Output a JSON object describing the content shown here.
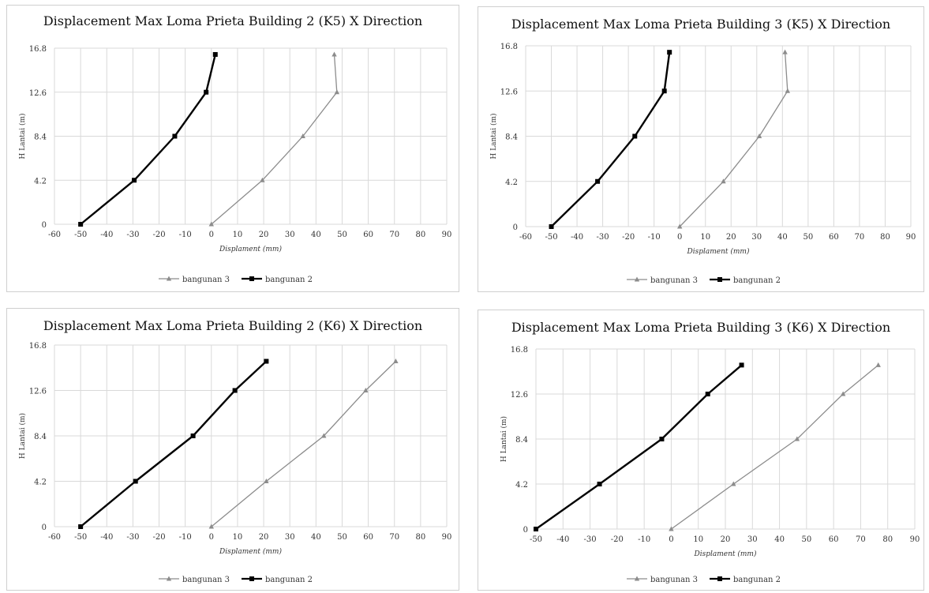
{
  "colors": {
    "series_light": "#8c8c8c",
    "series_dark": "#000000",
    "grid": "#d9d9d9",
    "border": "#cfcfcf"
  },
  "chart_data": [
    {
      "type": "line",
      "title": "Displacement Max Loma Prieta Building 2 (K5) X Direction",
      "xlabel": "Displament (mm)",
      "ylabel": "H Lantai (m)",
      "xlim": [
        -60,
        90
      ],
      "ylim": [
        0,
        16.8
      ],
      "xticks": [
        "-60",
        "-50",
        "-40",
        "-30",
        "-20",
        "-10",
        "0",
        "10",
        "20",
        "30",
        "40",
        "50",
        "60",
        "70",
        "80",
        "90"
      ],
      "yticks": [
        "0",
        "4.2",
        "8.4",
        "12.6",
        "16.8"
      ],
      "grid": true,
      "legend_position": "bottom",
      "series": [
        {
          "name": "bangunan 3",
          "marker": "triangle",
          "points": [
            [
              0,
              0
            ],
            [
              19.5,
              4.2
            ],
            [
              35,
              8.4
            ],
            [
              48,
              12.6
            ],
            [
              47,
              16.2
            ]
          ]
        },
        {
          "name": "bangunan 2",
          "marker": "square",
          "points": [
            [
              -50,
              0
            ],
            [
              -29.5,
              4.2
            ],
            [
              -14,
              8.4
            ],
            [
              -2,
              12.6
            ],
            [
              1.5,
              16.2
            ]
          ]
        }
      ]
    },
    {
      "type": "line",
      "title": "Displacement Max Loma Prieta Building 3 (K5) X Direction",
      "xlabel": "Displament (mm)",
      "ylabel": "H Lantai (m)",
      "xlim": [
        -60,
        90
      ],
      "ylim": [
        0,
        16.8
      ],
      "xticks": [
        "-60",
        "-50",
        "-40",
        "-30",
        "-20",
        "-10",
        "0",
        "10",
        "20",
        "30",
        "40",
        "50",
        "60",
        "70",
        "80",
        "90"
      ],
      "yticks": [
        "0",
        "4.2",
        "8.4",
        "12.6",
        "16.8"
      ],
      "grid": true,
      "legend_position": "bottom",
      "series": [
        {
          "name": "bangunan 3",
          "marker": "triangle",
          "points": [
            [
              0,
              0
            ],
            [
              17,
              4.2
            ],
            [
              31,
              8.4
            ],
            [
              42,
              12.6
            ],
            [
              41,
              16.2
            ]
          ]
        },
        {
          "name": "bangunan 2",
          "marker": "square",
          "points": [
            [
              -50,
              0
            ],
            [
              -32,
              4.2
            ],
            [
              -17.5,
              8.4
            ],
            [
              -6,
              12.6
            ],
            [
              -4,
              16.2
            ]
          ]
        }
      ]
    },
    {
      "type": "line",
      "title": "Displacement Max Loma Prieta Building 2 (K6) X Direction",
      "xlabel": "Displament (mm)",
      "ylabel": "H Lantai (m)",
      "xlim": [
        -60,
        90
      ],
      "ylim": [
        0,
        16.8
      ],
      "xticks": [
        "-60",
        "-50",
        "-40",
        "-30",
        "-20",
        "-10",
        "0",
        "10",
        "20",
        "30",
        "40",
        "50",
        "60",
        "70",
        "80",
        "90"
      ],
      "yticks": [
        "0",
        "4.2",
        "8.4",
        "12.6",
        "16.8"
      ],
      "grid": true,
      "legend_position": "bottom",
      "series": [
        {
          "name": "bangunan 3",
          "marker": "triangle",
          "points": [
            [
              0,
              0
            ],
            [
              21,
              4.2
            ],
            [
              43,
              8.4
            ],
            [
              59,
              12.6
            ],
            [
              70.5,
              15.3
            ]
          ]
        },
        {
          "name": "bangunan 2",
          "marker": "square",
          "points": [
            [
              -50,
              0
            ],
            [
              -29,
              4.2
            ],
            [
              -7,
              8.4
            ],
            [
              9,
              12.6
            ],
            [
              21,
              15.3
            ]
          ]
        }
      ]
    },
    {
      "type": "line",
      "title": "Displacement Max Loma Prieta Building 3 (K6) X Direction",
      "xlabel": "Displament (mm)",
      "ylabel": "H Lantai (m)",
      "xlim": [
        -50,
        90
      ],
      "ylim": [
        0,
        16.8
      ],
      "xticks": [
        "-50",
        "-40",
        "-30",
        "-20",
        "-10",
        "0",
        "10",
        "20",
        "30",
        "40",
        "50",
        "60",
        "70",
        "80",
        "90"
      ],
      "yticks": [
        "0",
        "4.2",
        "8.4",
        "12.6",
        "16.8"
      ],
      "grid": true,
      "legend_position": "bottom",
      "series": [
        {
          "name": "bangunan 3",
          "marker": "triangle",
          "points": [
            [
              0,
              0
            ],
            [
              23,
              4.2
            ],
            [
              46.5,
              8.4
            ],
            [
              63.5,
              12.6
            ],
            [
              76.5,
              15.3
            ]
          ]
        },
        {
          "name": "bangunan 2",
          "marker": "square",
          "points": [
            [
              -50,
              0
            ],
            [
              -26.5,
              4.2
            ],
            [
              -3.5,
              8.4
            ],
            [
              13.5,
              12.6
            ],
            [
              26,
              15.3
            ]
          ]
        }
      ]
    }
  ]
}
